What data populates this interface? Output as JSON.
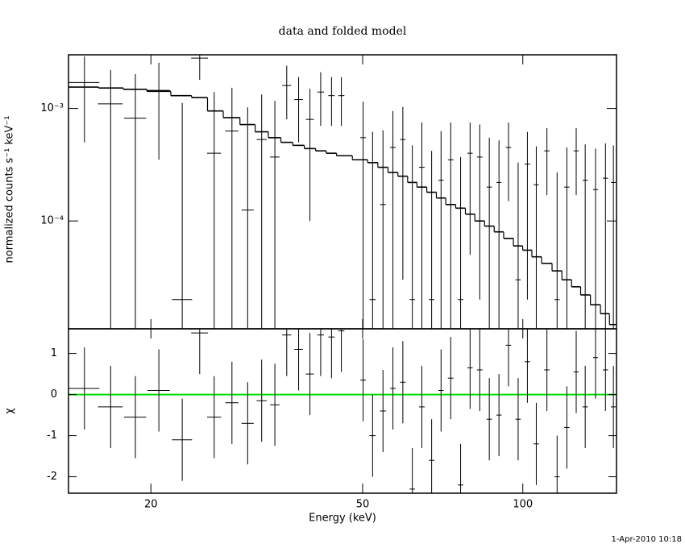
{
  "chart_data": [
    {
      "type": "spectrum",
      "title": "data and folded model",
      "ylabel": "normalized counts s⁻¹ keV⁻¹",
      "log_x": true,
      "log_y": true,
      "xlim": [
        14,
        150
      ],
      "ylim": [
        1.1e-05,
        0.003
      ],
      "yticks": [
        {
          "value": 0.001,
          "label": "10⁻³"
        },
        {
          "value": 0.0001,
          "label": "10⁻⁴"
        }
      ],
      "x": [
        15.0,
        16.8,
        18.7,
        20.7,
        22.9,
        24.7,
        26.3,
        28.4,
        30.4,
        32.3,
        34.2,
        36.0,
        37.9,
        39.8,
        41.7,
        43.7,
        45.6,
        50.1,
        52.2,
        54.6,
        57.0,
        59.5,
        62.0,
        64.6,
        67.4,
        70.2,
        73.2,
        76.4,
        79.6,
        83.0,
        86.5,
        90.2,
        94.0,
        98.0,
        102,
        106,
        111,
        116,
        121,
        126,
        131,
        137,
        143,
        148
      ],
      "xerr": [
        1.0,
        0.9,
        0.9,
        1.0,
        1.0,
        0.9,
        0.8,
        0.8,
        0.8,
        0.7,
        0.7,
        0.7,
        0.7,
        0.7,
        0.6,
        0.6,
        0.6,
        0.6,
        0.7,
        0.7,
        0.7,
        0.7,
        0.7,
        0.8,
        0.8,
        0.8,
        0.9,
        0.9,
        0.9,
        1.0,
        1.0,
        1.0,
        1.1,
        1.1,
        1.2,
        1.2,
        1.3,
        1.3,
        1.4,
        1.4,
        1.5,
        1.5,
        1.6,
        1.6
      ],
      "series": [
        {
          "color": "#000000",
          "style": "errorbar",
          "values": [
            0.0017,
            0.0011,
            0.00082,
            0.00145,
            2e-05,
            0.0028,
            0.0004,
            0.00063,
            0.000125,
            0.00053,
            0.00037,
            0.0016,
            0.0012,
            0.0008,
            0.0014,
            0.0013,
            0.0013,
            0.00055,
            2e-05,
            0.00014,
            0.00045,
            0.00053,
            2e-05,
            0.0003,
            2e-05,
            0.00023,
            0.00035,
            2e-05,
            0.0004,
            0.00037,
            0.0002,
            0.00022,
            0.00045,
            3e-05,
            0.00032,
            0.00021,
            0.00042,
            2e-05,
            0.0002,
            0.00042,
            0.00023,
            0.00019,
            0.00024,
            0.00022
          ],
          "yerr": [
            0.0012,
            0.0011,
            0.0012,
            0.0011,
            0.0011,
            0.001,
            0.001,
            0.0009,
            0.0009,
            0.0008,
            0.0008,
            0.0008,
            0.0007,
            0.0007,
            0.0007,
            0.0006,
            0.0006,
            0.0006,
            0.0006,
            0.0005,
            0.0005,
            0.0005,
            0.00045,
            0.00045,
            0.0004,
            0.0004,
            0.0004,
            0.00035,
            0.00035,
            0.00035,
            0.00035,
            0.0003,
            0.0003,
            0.0003,
            0.0003,
            0.00025,
            0.00025,
            0.00025,
            0.00025,
            0.00025,
            0.00025,
            0.00025,
            0.00025,
            0.00025
          ]
        },
        {
          "color": "#000000",
          "style": "step",
          "values": [
            0.00155,
            0.00152,
            0.00148,
            0.00142,
            0.0013,
            0.00125,
            0.00095,
            0.00083,
            0.00072,
            0.00062,
            0.00055,
            0.0005,
            0.00047,
            0.00044,
            0.00042,
            0.0004,
            0.00038,
            0.00035,
            0.00033,
            0.0003,
            0.00027,
            0.00025,
            0.00022,
            0.0002,
            0.00018,
            0.00016,
            0.00014,
            0.00013,
            0.000115,
            0.0001,
            9e-05,
            8e-05,
            7e-05,
            6e-05,
            5.5e-05,
            4.8e-05,
            4.2e-05,
            3.6e-05,
            3e-05,
            2.6e-05,
            2.2e-05,
            1.8e-05,
            1.5e-05,
            1.2e-05
          ]
        }
      ]
    },
    {
      "type": "residual",
      "ylabel": "χ",
      "xlabel": "Energy (keV)",
      "log_x": true,
      "xlim": [
        14,
        150
      ],
      "xticks": [
        20,
        50,
        100
      ],
      "ylim": [
        -2.4,
        1.6
      ],
      "yticks": [
        -2,
        -1,
        0,
        1
      ],
      "zero_line_color": "#00dd00",
      "values": [
        0.15,
        -0.3,
        -0.55,
        0.1,
        -1.1,
        1.5,
        -0.55,
        -0.2,
        -0.7,
        -0.15,
        -0.25,
        1.45,
        1.1,
        0.5,
        1.45,
        1.4,
        1.55,
        0.35,
        -1.0,
        -0.4,
        0.15,
        0.3,
        -2.3,
        -0.3,
        -1.6,
        0.1,
        0.4,
        -2.2,
        0.65,
        0.6,
        -0.6,
        -0.5,
        1.2,
        -0.6,
        0.8,
        -1.2,
        0.6,
        -2.0,
        -0.8,
        0.55,
        -0.3,
        0.9,
        0.6,
        -0.3
      ],
      "yerr": [
        1,
        1,
        1,
        1,
        1,
        1,
        1,
        1,
        1,
        1,
        1,
        1,
        1,
        1,
        1,
        1,
        1,
        1,
        1,
        1,
        1,
        1,
        1,
        1,
        1,
        1,
        1,
        1,
        1,
        1,
        1,
        1,
        1,
        1,
        1,
        1,
        1,
        1,
        1,
        1,
        1,
        1,
        1,
        1
      ]
    }
  ],
  "annotation": "1-Apr-2010 10:18"
}
